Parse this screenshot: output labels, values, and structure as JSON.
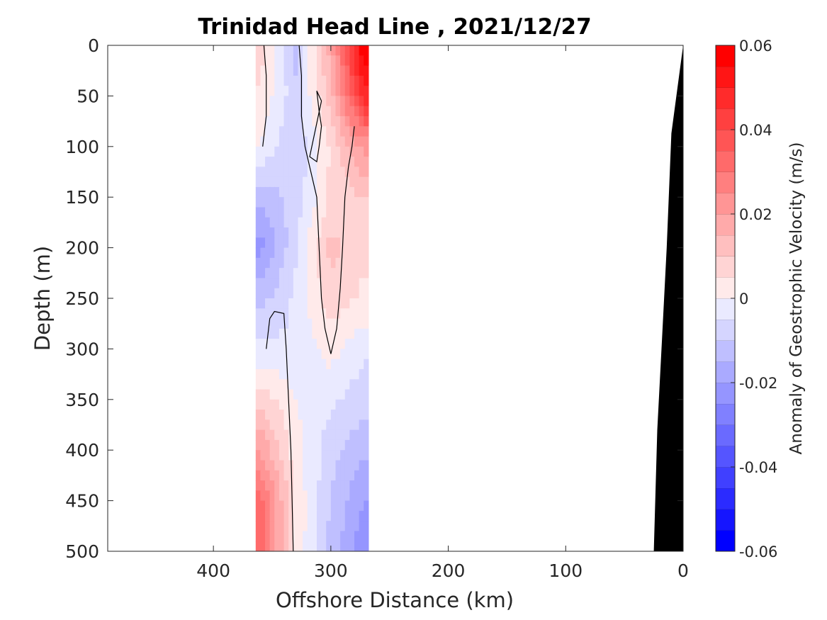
{
  "chart_data": {
    "type": "heatmap",
    "title": "Trinidad Head Line , 2021/12/27",
    "xlabel": "Offshore Distance (km)",
    "ylabel": "Depth (m)",
    "xlim": [
      490,
      0
    ],
    "ylim": [
      0,
      500
    ],
    "x_reversed": true,
    "y_reversed": true,
    "x_ticks": [
      400,
      300,
      200,
      100,
      0
    ],
    "y_ticks": [
      0,
      50,
      100,
      150,
      200,
      250,
      300,
      350,
      400,
      450,
      500
    ],
    "colorbar": {
      "label": "Anomaly of Geostrophic Velocity (m/s)",
      "range": [
        -0.06,
        0.06
      ],
      "ticks": [
        0.06,
        0.04,
        0.02,
        0,
        -0.02,
        -0.04,
        -0.06
      ],
      "levels": 24,
      "low_color": "#0000ff",
      "mid_color": "#ffffff",
      "high_color": "#ff0000"
    },
    "distance_columns_km": [
      360,
      330,
      300,
      272
    ],
    "depth_rows_m": [
      0,
      50,
      100,
      150,
      200,
      250,
      300,
      350,
      400,
      450,
      500
    ],
    "velocity_grid": [
      [
        0.008,
        -0.012,
        0.018,
        0.06
      ],
      [
        0.004,
        -0.008,
        0.012,
        0.048
      ],
      [
        0.0,
        -0.01,
        0.006,
        0.022
      ],
      [
        -0.014,
        -0.008,
        0.006,
        0.01
      ],
      [
        -0.022,
        -0.006,
        0.012,
        0.006
      ],
      [
        -0.012,
        -0.004,
        0.008,
        0.004
      ],
      [
        -0.004,
        -0.004,
        0.002,
        -0.004
      ],
      [
        0.008,
        0.0,
        -0.004,
        -0.008
      ],
      [
        0.02,
        0.002,
        -0.008,
        -0.014
      ],
      [
        0.032,
        0.004,
        -0.01,
        -0.02
      ],
      [
        0.034,
        0.004,
        -0.012,
        -0.024
      ]
    ],
    "zero_contours": [
      [
        [
          357,
          0
        ],
        [
          355,
          30
        ],
        [
          355,
          70
        ],
        [
          358,
          100
        ]
      ],
      [
        [
          327,
          0
        ],
        [
          325,
          30
        ],
        [
          325,
          70
        ],
        [
          322,
          100
        ],
        [
          318,
          120
        ],
        [
          312,
          150
        ],
        [
          310,
          200
        ],
        [
          308,
          250
        ],
        [
          305,
          280
        ],
        [
          300,
          305
        ],
        [
          295,
          280
        ],
        [
          292,
          240
        ],
        [
          290,
          200
        ],
        [
          288,
          150
        ],
        [
          285,
          120
        ],
        [
          282,
          100
        ],
        [
          280,
          80
        ]
      ],
      [
        [
          308,
          55
        ],
        [
          312,
          45
        ],
        [
          310,
          65
        ],
        [
          308,
          80
        ],
        [
          310,
          100
        ],
        [
          312,
          115
        ],
        [
          318,
          110
        ],
        [
          308,
          55
        ]
      ],
      [
        [
          355,
          300
        ],
        [
          352,
          270
        ],
        [
          348,
          263
        ],
        [
          340,
          265
        ],
        [
          338,
          300
        ],
        [
          336,
          350
        ],
        [
          334,
          400
        ],
        [
          333,
          450
        ],
        [
          332,
          500
        ]
      ]
    ],
    "land_mask": [
      [
        10,
        87
      ],
      [
        0,
        0
      ],
      [
        0,
        500
      ],
      [
        25,
        500
      ],
      [
        22,
        380
      ],
      [
        18,
        290
      ],
      [
        14,
        200
      ],
      [
        10,
        87
      ]
    ]
  }
}
